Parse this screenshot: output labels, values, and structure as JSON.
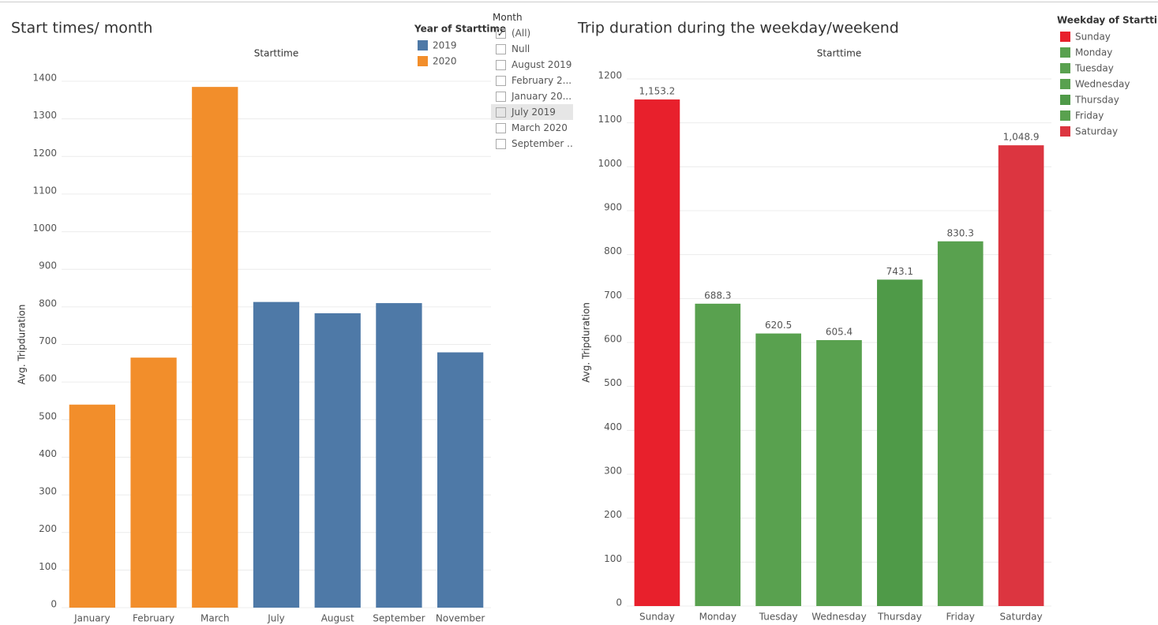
{
  "chart_data": [
    {
      "type": "bar",
      "title": "Start times/ month",
      "x_header": "Starttime",
      "y_label": "Avg. Tripduration",
      "categories": [
        "January",
        "February",
        "March",
        "July",
        "August",
        "September",
        "November"
      ],
      "series": [
        {
          "name": "2019",
          "color": "#4e79a7",
          "values": [
            null,
            null,
            null,
            813,
            783,
            810,
            679
          ]
        },
        {
          "name": "2020",
          "color": "#f28e2b",
          "values": [
            540,
            665,
            1385,
            null,
            null,
            null,
            null
          ]
        }
      ],
      "legend_title": "Year of Starttime",
      "ylim": [
        0,
        1400
      ],
      "yticks": [
        0,
        100,
        200,
        300,
        400,
        500,
        600,
        700,
        800,
        900,
        1000,
        1100,
        1200,
        1300,
        1400
      ],
      "grid": true
    },
    {
      "type": "bar",
      "title": "Trip duration during the weekday/weekend",
      "x_header": "Starttime",
      "y_label": "Avg. Tripduration",
      "categories": [
        "Sunday",
        "Monday",
        "Tuesday",
        "Wednesday",
        "Thursday",
        "Friday",
        "Saturday"
      ],
      "values": [
        1153.2,
        688.3,
        620.5,
        605.4,
        743.1,
        830.3,
        1048.9
      ],
      "value_labels": [
        "1,153.2",
        "688.3",
        "620.5",
        "605.4",
        "743.1",
        "830.3",
        "1,048.9"
      ],
      "colors": [
        "#e8202c",
        "#59a14f",
        "#59a14f",
        "#59a14f",
        "#4f9a48",
        "#59a14f",
        "#dc3540"
      ],
      "legend_title": "Weekday of Starttime",
      "ylim": [
        0,
        1200
      ],
      "yticks": [
        0,
        100,
        200,
        300,
        400,
        500,
        600,
        700,
        800,
        900,
        1000,
        1100,
        1200
      ],
      "grid": true
    }
  ],
  "filter": {
    "title": "Month",
    "items": [
      "(All)",
      "Null",
      "August 2019",
      "February 2...",
      "January 20...",
      "July 2019",
      "March 2020",
      "September ..."
    ],
    "checked": [
      true,
      false,
      false,
      false,
      false,
      false,
      false,
      false
    ]
  }
}
